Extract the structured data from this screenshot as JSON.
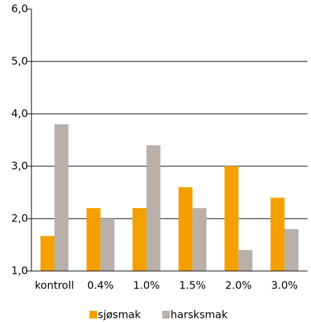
{
  "chart_data": {
    "type": "bar",
    "categories": [
      "kontroll",
      "0.4%",
      "1.0%",
      "1.5%",
      "2.0%",
      "3.0%"
    ],
    "series": [
      {
        "name": "sjøsmak",
        "color": "#f5a000",
        "values": [
          1.67,
          2.2,
          2.2,
          2.6,
          3.0,
          2.4
        ]
      },
      {
        "name": "harsksmak",
        "color": "#b9b0aa",
        "values": [
          3.8,
          2.0,
          3.4,
          2.2,
          1.4,
          1.8
        ]
      }
    ],
    "ylim": [
      1.0,
      6.0
    ],
    "yticks": [
      {
        "value": 1.0,
        "label": "1,0"
      },
      {
        "value": 2.0,
        "label": "2,0"
      },
      {
        "value": 3.0,
        "label": "3,0"
      },
      {
        "value": 4.0,
        "label": "4,0"
      },
      {
        "value": 5.0,
        "label": "5,0"
      },
      {
        "value": 6.0,
        "label": "6,0"
      }
    ],
    "grid": true,
    "legend": "bottom"
  }
}
